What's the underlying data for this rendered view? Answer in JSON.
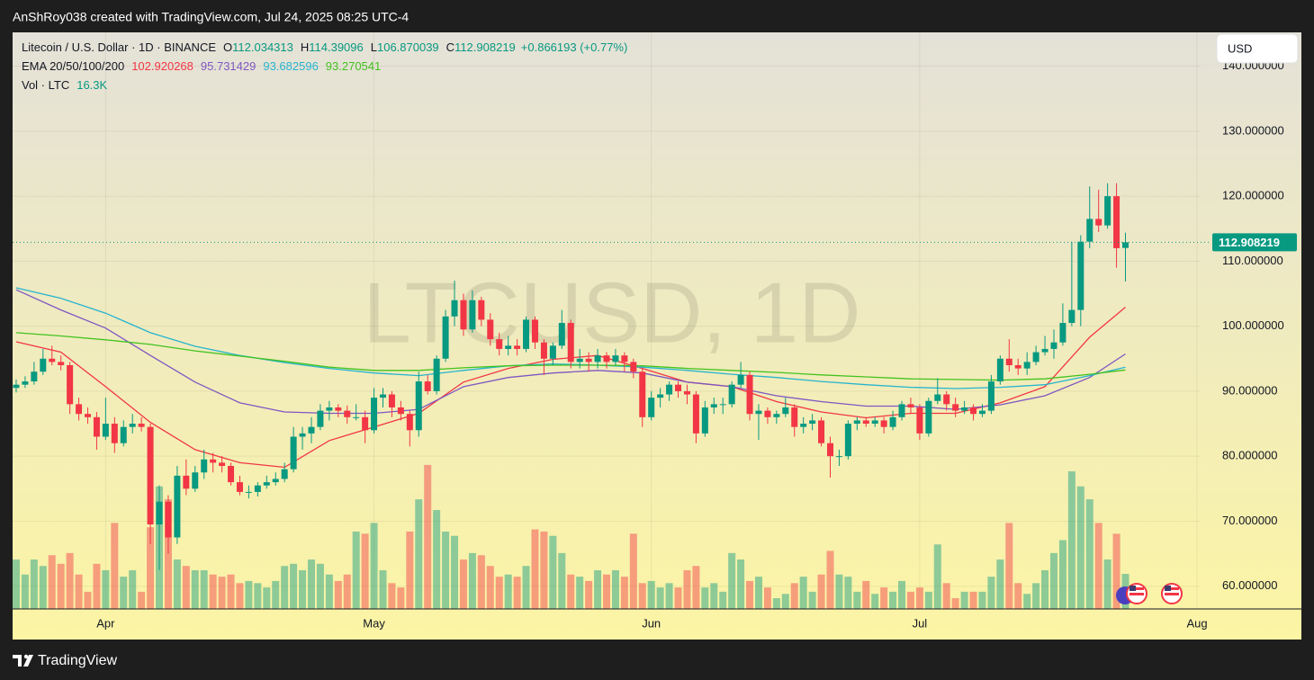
{
  "header": {
    "text": "AnShRoy038 created with TradingView.com, Jul 24, 2025 08:25 UTC-4"
  },
  "footer": {
    "brand": "TradingView"
  },
  "chart_data": {
    "type": "candlestick",
    "title": "Litecoin / U.S. Dollar · 1D · BINANCE",
    "watermark": "LTCUSD, 1D",
    "currency": "USD",
    "ohlc_labels": [
      "O",
      "H",
      "L",
      "C"
    ],
    "change": "+0.866193 (+0.77%)",
    "up_color": "#089981",
    "down_color": "#f23645",
    "grid": true,
    "xlim": [
      80.6,
      213.4
    ],
    "xticks": [
      {
        "value": 91,
        "label": "Apr"
      },
      {
        "value": 121,
        "label": "May"
      },
      {
        "value": 152,
        "label": "Jun"
      },
      {
        "value": 182,
        "label": "Jul"
      },
      {
        "value": 213,
        "label": "Aug"
      }
    ],
    "ylim": [
      56.5,
      145.2
    ],
    "yticks": [
      {
        "value": 60,
        "label": "60.000000"
      },
      {
        "value": 70,
        "label": "70.000000"
      },
      {
        "value": 80,
        "label": "80.000000"
      },
      {
        "value": 90,
        "label": "90.000000"
      },
      {
        "value": 100,
        "label": "100.000000"
      },
      {
        "value": 110,
        "label": "110.000000"
      },
      {
        "value": 120,
        "label": "120.000000"
      },
      {
        "value": 130,
        "label": "130.000000"
      },
      {
        "value": 140,
        "label": "140.000000"
      }
    ],
    "x": [
      81,
      82,
      83,
      84,
      85,
      86,
      87,
      88,
      89,
      90,
      91,
      92,
      93,
      94,
      95,
      96,
      97,
      98,
      99,
      100,
      101,
      102,
      103,
      104,
      105,
      106,
      107,
      108,
      109,
      110,
      111,
      112,
      113,
      114,
      115,
      116,
      117,
      118,
      119,
      120,
      121,
      122,
      123,
      124,
      125,
      126,
      127,
      128,
      129,
      130,
      131,
      132,
      133,
      134,
      135,
      136,
      137,
      138,
      139,
      140,
      141,
      142,
      143,
      144,
      145,
      146,
      147,
      148,
      149,
      150,
      151,
      152,
      153,
      154,
      155,
      156,
      157,
      158,
      159,
      160,
      161,
      162,
      163,
      164,
      165,
      166,
      167,
      168,
      169,
      170,
      171,
      172,
      173,
      174,
      175,
      176,
      177,
      178,
      179,
      180,
      181,
      182,
      183,
      184,
      185,
      186,
      187,
      188,
      189,
      190,
      191,
      192,
      193,
      194,
      195,
      196,
      197,
      198,
      199,
      200,
      201,
      202,
      203,
      204,
      205
    ],
    "ohlc": [
      [
        90.5,
        91.8,
        89.8,
        91
      ],
      [
        91,
        92.3,
        90.5,
        91.5
      ],
      [
        91.5,
        94.5,
        91,
        93
      ],
      [
        93,
        96.5,
        92.5,
        95
      ],
      [
        95,
        97,
        94,
        94.5
      ],
      [
        94.5,
        95.5,
        93.2,
        94
      ],
      [
        94,
        94.5,
        86.5,
        88
      ],
      [
        88,
        89,
        85.5,
        86.5
      ],
      [
        86.5,
        87.5,
        85,
        86
      ],
      [
        86,
        86.8,
        81,
        83
      ],
      [
        83,
        89,
        82.5,
        85
      ],
      [
        85,
        86,
        80.5,
        82
      ],
      [
        82,
        85.5,
        81.5,
        84.5
      ],
      [
        84.5,
        86.5,
        83.5,
        85
      ],
      [
        85,
        86,
        83.8,
        84.5
      ],
      [
        84.5,
        85,
        66.5,
        69.5
      ],
      [
        69.5,
        75.5,
        62.5,
        73
      ],
      [
        73,
        74,
        65,
        67.5
      ],
      [
        67.5,
        78.5,
        66.5,
        77
      ],
      [
        77,
        79.5,
        74,
        75
      ],
      [
        75,
        78.5,
        74.5,
        77.5
      ],
      [
        77.5,
        81,
        76.5,
        79.5
      ],
      [
        79.5,
        80.5,
        77.5,
        79
      ],
      [
        79,
        80,
        77.5,
        78.5
      ],
      [
        78.5,
        79,
        75.5,
        76
      ],
      [
        76,
        77,
        74,
        74.5
      ],
      [
        74.5,
        75.5,
        73.5,
        74.5
      ],
      [
        74.5,
        76,
        73.8,
        75.5
      ],
      [
        75.5,
        77,
        75,
        76
      ],
      [
        76,
        77.5,
        75.5,
        76.5
      ],
      [
        76.5,
        79,
        76,
        78
      ],
      [
        78,
        84.5,
        77.5,
        83
      ],
      [
        83,
        84.5,
        81,
        83.5
      ],
      [
        83.5,
        86,
        82,
        84.5
      ],
      [
        84.5,
        88,
        84,
        87
      ],
      [
        87,
        88.5,
        85.5,
        87.5
      ],
      [
        87.5,
        88,
        86,
        87
      ],
      [
        87,
        87.8,
        85,
        86
      ],
      [
        86,
        88,
        85.5,
        86
      ],
      [
        86,
        87,
        82,
        84
      ],
      [
        84,
        90.5,
        83.5,
        89
      ],
      [
        89,
        90.5,
        87.5,
        89.5
      ],
      [
        89.5,
        90,
        86,
        87.5
      ],
      [
        87.5,
        88.5,
        85.5,
        86.5
      ],
      [
        86.5,
        87,
        81.5,
        84
      ],
      [
        84,
        93,
        83,
        91.5
      ],
      [
        91.5,
        92.5,
        89.5,
        90
      ],
      [
        90,
        95.5,
        89.5,
        95
      ],
      [
        95,
        102.5,
        94.5,
        101.5
      ],
      [
        101.5,
        107,
        100,
        104
      ],
      [
        104,
        105,
        98.5,
        99.5
      ],
      [
        99.5,
        105.5,
        99,
        104
      ],
      [
        104,
        104.5,
        100,
        101
      ],
      [
        101,
        102,
        97,
        98
      ],
      [
        98,
        99,
        95.5,
        96.5
      ],
      [
        96.5,
        98.5,
        95.5,
        97
      ],
      [
        97,
        98,
        95.5,
        96.5
      ],
      [
        96.5,
        101.5,
        96,
        101
      ],
      [
        101,
        101.5,
        96.5,
        97.5
      ],
      [
        97.5,
        98,
        92.5,
        95
      ],
      [
        95,
        97.5,
        94,
        97
      ],
      [
        97,
        102.5,
        96.5,
        100.5
      ],
      [
        100.5,
        101,
        93.5,
        94.5
      ],
      [
        94.5,
        96.5,
        93.5,
        95
      ],
      [
        95,
        96,
        93,
        94.5
      ],
      [
        94.5,
        96.5,
        93.5,
        95.5
      ],
      [
        95.5,
        96,
        93.5,
        94.5
      ],
      [
        94.5,
        96.5,
        94,
        95.5
      ],
      [
        95.5,
        96,
        93,
        94.5
      ],
      [
        94.5,
        95,
        92,
        93
      ],
      [
        93,
        93.5,
        84.5,
        86
      ],
      [
        86,
        90,
        85.5,
        89
      ],
      [
        89,
        90.5,
        87.5,
        89.5
      ],
      [
        89.5,
        91.5,
        88.5,
        91
      ],
      [
        91,
        91.5,
        89,
        90
      ],
      [
        90,
        91,
        88,
        89.5
      ],
      [
        89.5,
        90,
        82,
        83.5
      ],
      [
        83.5,
        88.5,
        83,
        87.5
      ],
      [
        87.5,
        89,
        86.5,
        88
      ],
      [
        88,
        89,
        86.5,
        88
      ],
      [
        88,
        91.5,
        87.5,
        91
      ],
      [
        91,
        94.5,
        90.5,
        92.5
      ],
      [
        92.5,
        93,
        85.5,
        86.5
      ],
      [
        86.5,
        88,
        82.5,
        87
      ],
      [
        87,
        87.5,
        85,
        86
      ],
      [
        86,
        87,
        85,
        86.5
      ],
      [
        86.5,
        89,
        86,
        87.5
      ],
      [
        87.5,
        88,
        83,
        84.5
      ],
      [
        84.5,
        86,
        83.5,
        85
      ],
      [
        85,
        86.5,
        84,
        85.5
      ],
      [
        85.5,
        86,
        81.5,
        82
      ],
      [
        82,
        83,
        76.7,
        80
      ],
      [
        80,
        81,
        78.5,
        80
      ],
      [
        80,
        85.5,
        79.5,
        85
      ],
      [
        85,
        86,
        84,
        85.5
      ],
      [
        85.5,
        86,
        84.5,
        85
      ],
      [
        85,
        86,
        84.5,
        85.5
      ],
      [
        85.5,
        86,
        83.5,
        84.5
      ],
      [
        84.5,
        87,
        84,
        86
      ],
      [
        86,
        88.5,
        85.5,
        88
      ],
      [
        88,
        89,
        86.5,
        87.5
      ],
      [
        87.5,
        88,
        82.5,
        83.5
      ],
      [
        83.5,
        89,
        83,
        88.5
      ],
      [
        88.5,
        92,
        88,
        89.5
      ],
      [
        89.5,
        90,
        87,
        88
      ],
      [
        88,
        89,
        86,
        87
      ],
      [
        87,
        88.5,
        86.5,
        87.5
      ],
      [
        87.5,
        88,
        85.5,
        86.5
      ],
      [
        86.5,
        88,
        86,
        87
      ],
      [
        87,
        92.5,
        86.5,
        91.5
      ],
      [
        91.5,
        95.5,
        91,
        95
      ],
      [
        95,
        98,
        93,
        94
      ],
      [
        94,
        95,
        92.5,
        93.5
      ],
      [
        93.5,
        96,
        92.5,
        94.5
      ],
      [
        94.5,
        97,
        94,
        96
      ],
      [
        96,
        98.5,
        95.5,
        96.5
      ],
      [
        96.5,
        99.5,
        95,
        97.5
      ],
      [
        97.5,
        103.5,
        97,
        100.5
      ],
      [
        100.5,
        113,
        100,
        102.5
      ],
      [
        102.5,
        114,
        100,
        113
      ],
      [
        113,
        121.5,
        112,
        116.5
      ],
      [
        116.5,
        121,
        114.5,
        115.5
      ],
      [
        115.5,
        122,
        115,
        120
      ],
      [
        120,
        122,
        109,
        112
      ],
      [
        112.034313,
        114.39096,
        106.870039,
        112.908219
      ]
    ],
    "indicator": "EMA 20/50/100/200",
    "series": [
      {
        "color": "#f23645",
        "x": [
          81,
          86,
          91,
          96,
          101,
          106,
          111,
          116,
          121,
          126,
          131,
          136,
          141,
          146,
          151,
          156,
          161,
          166,
          171,
          176,
          181,
          186,
          191,
          196,
          201,
          205
        ],
        "values": [
          97.6,
          96,
          90.7,
          85.2,
          81,
          79,
          78.3,
          82.4,
          84.5,
          86.6,
          91.4,
          93.5,
          94.9,
          95.5,
          93.5,
          91.4,
          90.7,
          88.4,
          86.8,
          85.9,
          86.6,
          86.6,
          88.2,
          90.7,
          98.3,
          102.920268
        ]
      },
      {
        "color": "#7e57c2",
        "x": [
          81,
          86,
          91,
          96,
          101,
          106,
          111,
          116,
          121,
          126,
          131,
          136,
          141,
          146,
          151,
          156,
          161,
          166,
          171,
          176,
          181,
          186,
          191,
          196,
          201,
          205
        ],
        "values": [
          105.6,
          102.5,
          99.7,
          95.5,
          91.4,
          88.2,
          86.8,
          86.6,
          86.6,
          87.2,
          90.7,
          92.1,
          92.8,
          93.2,
          92.8,
          91.4,
          90.7,
          89.3,
          88.4,
          87.7,
          87.7,
          87.2,
          87.9,
          89.3,
          92.1,
          95.731429
        ]
      },
      {
        "color": "#26b4cf",
        "x": [
          81,
          86,
          91,
          96,
          101,
          106,
          111,
          116,
          121,
          126,
          131,
          136,
          141,
          146,
          151,
          156,
          161,
          166,
          171,
          176,
          181,
          186,
          191,
          196,
          201,
          205
        ],
        "values": [
          105.9,
          104.3,
          102,
          99,
          96.9,
          95.5,
          94.4,
          93.5,
          92.8,
          92.4,
          93.2,
          93.9,
          94.2,
          94,
          93.7,
          93.2,
          92.6,
          92.1,
          91.5,
          91,
          90.6,
          90.4,
          90.6,
          91,
          92.4,
          93.682596
        ]
      },
      {
        "color": "#43c21f",
        "x": [
          81,
          86,
          91,
          96,
          101,
          106,
          111,
          116,
          121,
          126,
          131,
          136,
          141,
          146,
          151,
          156,
          161,
          166,
          171,
          176,
          181,
          186,
          191,
          196,
          201,
          205
        ],
        "values": [
          99,
          98.5,
          97.9,
          97.2,
          96.2,
          95.4,
          94.6,
          93.7,
          93.2,
          93.2,
          93.6,
          93.9,
          94,
          94,
          93.9,
          93.5,
          93.2,
          92.9,
          92.5,
          92.2,
          91.9,
          91.8,
          91.7,
          91.9,
          92.6,
          93.270541
        ]
      }
    ],
    "volume": {
      "name": "Vol · LTC",
      "last_label": "16.3K",
      "values": [
        23,
        16,
        23,
        20,
        25,
        21,
        26,
        16,
        8,
        21,
        18,
        40,
        15,
        18,
        8,
        38,
        57,
        51,
        23,
        20,
        18,
        18,
        16,
        15,
        16,
        12,
        13,
        12,
        10,
        13,
        20,
        21,
        18,
        23,
        21,
        16,
        13,
        16,
        36,
        35,
        40,
        18,
        12,
        10,
        36,
        51,
        67,
        46,
        36,
        34,
        23,
        26,
        25,
        20,
        15,
        16,
        15,
        20,
        37,
        36,
        34,
        26,
        16,
        15,
        13,
        18,
        16,
        18,
        15,
        35,
        12,
        13,
        10,
        12,
        10,
        18,
        20,
        10,
        12,
        8,
        26,
        23,
        13,
        15,
        10,
        5,
        7,
        12,
        15,
        8,
        16,
        27,
        16,
        15,
        8,
        13,
        7,
        10,
        8,
        13,
        8,
        10,
        8,
        30,
        12,
        5,
        8,
        8,
        8,
        15,
        23,
        40,
        12,
        7,
        12,
        18,
        26,
        32,
        64,
        57,
        51,
        40,
        23,
        35,
        16.3
      ]
    }
  }
}
